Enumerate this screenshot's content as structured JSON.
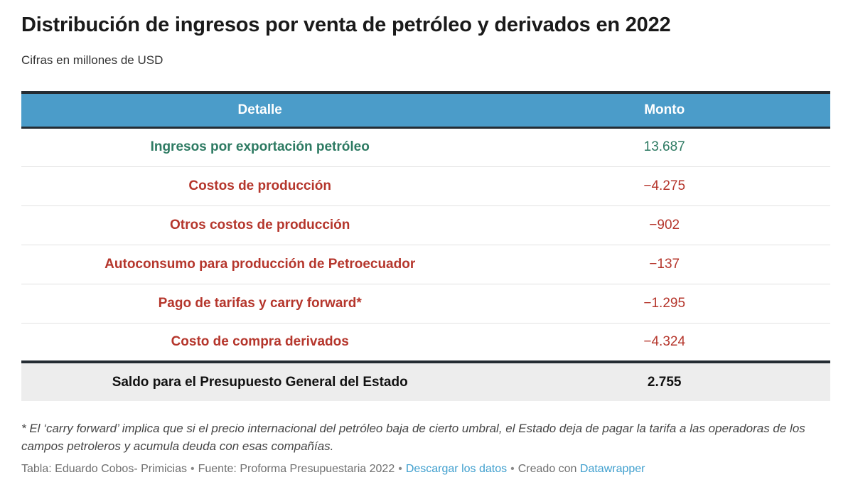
{
  "header": {
    "title": "Distribución de ingresos por venta de petróleo y derivados en 2022",
    "subtitle": "Cifras en millones de USD"
  },
  "table": {
    "columns": [
      "Detalle",
      "Monto"
    ],
    "rows": [
      {
        "label": "Ingresos por exportación petróleo",
        "value": "13.687",
        "sign": "positive"
      },
      {
        "label": "Costos de producción",
        "value": "−4.275",
        "sign": "negative"
      },
      {
        "label": "Otros costos de producción",
        "value": "−902",
        "sign": "negative"
      },
      {
        "label": "Autoconsumo para producción de Petroecuador",
        "value": "−137",
        "sign": "negative"
      },
      {
        "label": "Pago de tarifas y carry forward*",
        "value": "−1.295",
        "sign": "negative"
      },
      {
        "label": "Costo de compra derivados",
        "value": "−4.324",
        "sign": "negative"
      }
    ],
    "total_row": {
      "label": "Saldo para el Presupuesto General del Estado",
      "value": "2.755"
    }
  },
  "footnote": "* El ‘carry forward’ implica que si el precio internacional del petróleo baja de cierto umbral, el Estado deja de pagar la tarifa a las operadoras de los campos petroleros y acumula deuda con esas compañías.",
  "footer": {
    "credit": "Tabla: Eduardo Cobos- Primicias",
    "bullet": "•",
    "source": "Fuente: Proforma Presupuestaria 2022",
    "download_link": "Descargar los datos",
    "created_label": "Creado con",
    "tool_link": "Datawrapper"
  },
  "colors": {
    "header_blue": "#4b9cc9",
    "dark_border": "#242c33",
    "positive_green": "#2d7a62",
    "negative_red": "#b5362c",
    "total_row_bg": "#ededed",
    "link_blue": "#3f9fce"
  },
  "chart_data": {
    "type": "table",
    "title": "Distribución de ingresos por venta de petróleo y derivados en 2022",
    "subtitle": "Cifras en millones de USD",
    "units": "millones de USD",
    "columns": [
      "Detalle",
      "Monto"
    ],
    "rows": [
      {
        "detalle": "Ingresos por exportación petróleo",
        "monto": 13687
      },
      {
        "detalle": "Costos de producción",
        "monto": -4275
      },
      {
        "detalle": "Otros costos de producción",
        "monto": -902
      },
      {
        "detalle": "Autoconsumo para producción de Petroecuador",
        "monto": -137
      },
      {
        "detalle": "Pago de tarifas y carry forward*",
        "monto": -1295
      },
      {
        "detalle": "Costo de compra derivados",
        "monto": -4324
      },
      {
        "detalle": "Saldo para el Presupuesto General del Estado",
        "monto": 2755
      }
    ]
  }
}
